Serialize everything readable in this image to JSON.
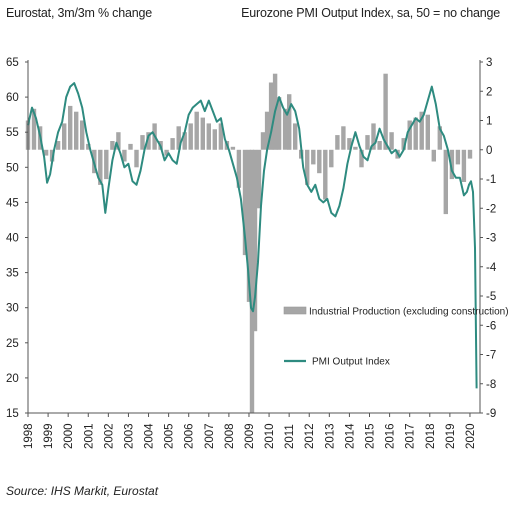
{
  "header": {
    "left_axis_title": "Eurostat, 3m/3m % change",
    "right_axis_title": "Eurozone PMI Output Index, sa, 50 = no change"
  },
  "source_note": "Source: IHS Markit, Eurostat",
  "colors": {
    "bars": "#a6a6a6",
    "line": "#2e8b80",
    "axis": "#555555"
  },
  "chart_data": {
    "type": "bar+line",
    "x_axis": {
      "tick_labels": [
        "1998",
        "1999",
        "2000",
        "2001",
        "2002",
        "2003",
        "2004",
        "2005",
        "2006",
        "2007",
        "2008",
        "2009",
        "2010",
        "2011",
        "2012",
        "2013",
        "2014",
        "2015",
        "2016",
        "2017",
        "2018",
        "2019",
        "2020"
      ],
      "range": [
        1998,
        2020.5
      ]
    },
    "y_left": {
      "range": [
        15,
        65
      ],
      "ticks": [
        15,
        20,
        25,
        30,
        35,
        40,
        45,
        50,
        55,
        60,
        65
      ]
    },
    "y_right": {
      "range": [
        -9,
        3
      ],
      "ticks": [
        -9,
        -8,
        -7,
        -6,
        -5,
        -4,
        -3,
        -2,
        -1,
        0,
        1,
        2,
        3
      ]
    },
    "grid": false,
    "legend_placement": "right-middle",
    "series": [
      {
        "name": "Industrial Production (excluding construction)",
        "type": "bar",
        "axis": "right",
        "points": [
          [
            1998.0,
            1.0
          ],
          [
            1998.3,
            1.4
          ],
          [
            1998.6,
            0.8
          ],
          [
            1998.9,
            -0.2
          ],
          [
            1999.2,
            -0.4
          ],
          [
            1999.5,
            0.3
          ],
          [
            1999.8,
            0.9
          ],
          [
            2000.1,
            1.5
          ],
          [
            2000.4,
            1.3
          ],
          [
            2000.7,
            1.0
          ],
          [
            2001.0,
            0.2
          ],
          [
            2001.3,
            -0.8
          ],
          [
            2001.6,
            -1.2
          ],
          [
            2001.9,
            -1.0
          ],
          [
            2002.2,
            0.3
          ],
          [
            2002.5,
            0.6
          ],
          [
            2002.8,
            -0.4
          ],
          [
            2003.1,
            0.2
          ],
          [
            2003.4,
            -0.6
          ],
          [
            2003.7,
            0.5
          ],
          [
            2004.0,
            0.6
          ],
          [
            2004.3,
            0.9
          ],
          [
            2004.6,
            0.3
          ],
          [
            2004.9,
            -0.2
          ],
          [
            2005.2,
            0.4
          ],
          [
            2005.5,
            0.8
          ],
          [
            2005.8,
            0.6
          ],
          [
            2006.1,
            0.9
          ],
          [
            2006.4,
            1.3
          ],
          [
            2006.7,
            1.1
          ],
          [
            2007.0,
            0.9
          ],
          [
            2007.3,
            0.7
          ],
          [
            2007.6,
            0.9
          ],
          [
            2007.9,
            0.3
          ],
          [
            2008.2,
            0.1
          ],
          [
            2008.5,
            -1.3
          ],
          [
            2008.8,
            -3.6
          ],
          [
            2009.0,
            -5.2
          ],
          [
            2009.15,
            -9.0
          ],
          [
            2009.3,
            -6.2
          ],
          [
            2009.5,
            -2.0
          ],
          [
            2009.7,
            0.6
          ],
          [
            2009.9,
            1.3
          ],
          [
            2010.1,
            2.3
          ],
          [
            2010.3,
            2.6
          ],
          [
            2010.5,
            1.8
          ],
          [
            2010.8,
            1.4
          ],
          [
            2011.0,
            1.9
          ],
          [
            2011.3,
            0.9
          ],
          [
            2011.6,
            -0.3
          ],
          [
            2011.9,
            -1.2
          ],
          [
            2012.2,
            -0.5
          ],
          [
            2012.5,
            -0.8
          ],
          [
            2012.8,
            -1.7
          ],
          [
            2013.1,
            -0.6
          ],
          [
            2013.4,
            0.5
          ],
          [
            2013.7,
            0.8
          ],
          [
            2014.0,
            0.4
          ],
          [
            2014.3,
            0.1
          ],
          [
            2014.6,
            -0.6
          ],
          [
            2014.9,
            0.5
          ],
          [
            2015.2,
            0.9
          ],
          [
            2015.5,
            0.3
          ],
          [
            2015.8,
            2.6
          ],
          [
            2016.1,
            0.6
          ],
          [
            2016.4,
            -0.3
          ],
          [
            2016.7,
            0.4
          ],
          [
            2017.0,
            1.0
          ],
          [
            2017.3,
            1.1
          ],
          [
            2017.6,
            1.3
          ],
          [
            2017.9,
            1.2
          ],
          [
            2018.2,
            -0.4
          ],
          [
            2018.5,
            0.8
          ],
          [
            2018.8,
            -2.2
          ],
          [
            2019.1,
            -1.0
          ],
          [
            2019.4,
            -0.5
          ],
          [
            2019.7,
            -1.1
          ],
          [
            2020.0,
            -0.3
          ]
        ]
      },
      {
        "name": "PMI Output Index",
        "type": "line",
        "axis": "left",
        "points": [
          [
            1998.0,
            56.0
          ],
          [
            1998.2,
            58.5
          ],
          [
            1998.4,
            57.0
          ],
          [
            1998.6,
            54.5
          ],
          [
            1998.8,
            51.5
          ],
          [
            1998.95,
            47.8
          ],
          [
            1999.1,
            49.0
          ],
          [
            1999.3,
            52.5
          ],
          [
            1999.5,
            55.0
          ],
          [
            1999.7,
            56.5
          ],
          [
            1999.9,
            60.0
          ],
          [
            2000.1,
            61.5
          ],
          [
            2000.3,
            62.0
          ],
          [
            2000.5,
            60.5
          ],
          [
            2000.7,
            58.5
          ],
          [
            2000.9,
            55.0
          ],
          [
            2001.1,
            52.5
          ],
          [
            2001.3,
            50.5
          ],
          [
            2001.5,
            48.5
          ],
          [
            2001.7,
            47.5
          ],
          [
            2001.85,
            43.5
          ],
          [
            2002.0,
            47.0
          ],
          [
            2002.2,
            51.0
          ],
          [
            2002.4,
            53.5
          ],
          [
            2002.6,
            52.0
          ],
          [
            2002.8,
            50.0
          ],
          [
            2003.0,
            50.5
          ],
          [
            2003.2,
            48.0
          ],
          [
            2003.4,
            47.5
          ],
          [
            2003.6,
            49.5
          ],
          [
            2003.8,
            52.5
          ],
          [
            2004.0,
            54.5
          ],
          [
            2004.2,
            55.0
          ],
          [
            2004.4,
            54.0
          ],
          [
            2004.6,
            53.0
          ],
          [
            2004.8,
            51.0
          ],
          [
            2005.0,
            52.0
          ],
          [
            2005.2,
            51.0
          ],
          [
            2005.4,
            50.5
          ],
          [
            2005.6,
            53.5
          ],
          [
            2005.8,
            55.0
          ],
          [
            2006.0,
            57.5
          ],
          [
            2006.2,
            58.5
          ],
          [
            2006.4,
            59.0
          ],
          [
            2006.6,
            59.5
          ],
          [
            2006.8,
            58.0
          ],
          [
            2007.0,
            59.5
          ],
          [
            2007.2,
            58.0
          ],
          [
            2007.4,
            56.5
          ],
          [
            2007.6,
            57.0
          ],
          [
            2007.8,
            54.0
          ],
          [
            2008.0,
            52.5
          ],
          [
            2008.2,
            50.5
          ],
          [
            2008.4,
            48.5
          ],
          [
            2008.6,
            45.5
          ],
          [
            2008.8,
            40.0
          ],
          [
            2008.95,
            35.5
          ],
          [
            2009.1,
            30.0
          ],
          [
            2009.2,
            29.5
          ],
          [
            2009.3,
            31.5
          ],
          [
            2009.45,
            36.5
          ],
          [
            2009.6,
            44.5
          ],
          [
            2009.75,
            49.5
          ],
          [
            2009.9,
            52.5
          ],
          [
            2010.1,
            55.0
          ],
          [
            2010.3,
            58.0
          ],
          [
            2010.5,
            60.0
          ],
          [
            2010.7,
            58.5
          ],
          [
            2010.9,
            57.5
          ],
          [
            2011.1,
            59.0
          ],
          [
            2011.3,
            58.0
          ],
          [
            2011.5,
            55.5
          ],
          [
            2011.7,
            50.0
          ],
          [
            2011.9,
            47.5
          ],
          [
            2012.1,
            46.5
          ],
          [
            2012.3,
            47.5
          ],
          [
            2012.5,
            45.5
          ],
          [
            2012.7,
            45.0
          ],
          [
            2012.9,
            45.5
          ],
          [
            2013.1,
            43.5
          ],
          [
            2013.3,
            43.0
          ],
          [
            2013.5,
            44.5
          ],
          [
            2013.7,
            47.0
          ],
          [
            2013.9,
            50.5
          ],
          [
            2014.1,
            53.0
          ],
          [
            2014.3,
            55.0
          ],
          [
            2014.5,
            53.0
          ],
          [
            2014.7,
            51.5
          ],
          [
            2014.9,
            51.0
          ],
          [
            2015.1,
            53.0
          ],
          [
            2015.3,
            53.5
          ],
          [
            2015.5,
            55.5
          ],
          [
            2015.7,
            54.0
          ],
          [
            2015.9,
            53.0
          ],
          [
            2016.1,
            52.0
          ],
          [
            2016.3,
            52.5
          ],
          [
            2016.5,
            51.5
          ],
          [
            2016.7,
            52.5
          ],
          [
            2016.9,
            55.0
          ],
          [
            2017.1,
            56.0
          ],
          [
            2017.3,
            57.0
          ],
          [
            2017.5,
            56.5
          ],
          [
            2017.7,
            57.5
          ],
          [
            2017.9,
            59.5
          ],
          [
            2018.1,
            61.5
          ],
          [
            2018.3,
            59.0
          ],
          [
            2018.5,
            55.5
          ],
          [
            2018.7,
            54.5
          ],
          [
            2018.9,
            52.5
          ],
          [
            2019.1,
            49.5
          ],
          [
            2019.3,
            48.5
          ],
          [
            2019.5,
            48.5
          ],
          [
            2019.7,
            46.0
          ],
          [
            2019.85,
            46.5
          ],
          [
            2019.95,
            47.5
          ],
          [
            2020.05,
            48.0
          ],
          [
            2020.15,
            46.5
          ],
          [
            2020.25,
            38.5
          ],
          [
            2020.33,
            18.5
          ]
        ]
      }
    ]
  }
}
